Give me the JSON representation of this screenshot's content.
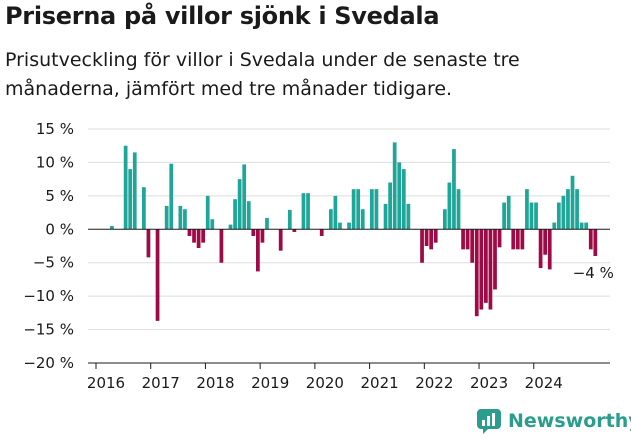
{
  "title": "Priserna på villor sjönk i Svedala",
  "subtitle": "Prisutveckling för villor i Svedala under de senaste tre månaderna, jämfört med tre månader tidigare.",
  "brand": "Newsworthy",
  "colors": {
    "positive": "#1fa698",
    "negative": "#9e0a45",
    "grid": "#dddddd",
    "text": "#1a1a1a",
    "brand": "#2a9d8f"
  },
  "chart_data": {
    "type": "bar",
    "ylim": [
      -20,
      15
    ],
    "yticks": [
      15,
      10,
      5,
      0,
      -5,
      -10,
      -15,
      -20
    ],
    "ytick_labels": [
      "15 %",
      "10 %",
      "5 %",
      "0 %",
      "−5 %",
      "−10 %",
      "−15 %",
      "−20 %"
    ],
    "xtick_labels": [
      "2016",
      "2017",
      "2018",
      "2019",
      "2020",
      "2021",
      "2022",
      "2023",
      "2024"
    ],
    "x_start": "2016-01",
    "annotation": "−4 %",
    "values": [
      0,
      0,
      0,
      0.5,
      0,
      0,
      12.5,
      9,
      11.5,
      0,
      6.3,
      -4.2,
      0,
      -13.7,
      0,
      3.5,
      9.8,
      0,
      3.5,
      3,
      -1,
      -2,
      -2.8,
      -2,
      5,
      1.5,
      0,
      -5,
      0,
      0.7,
      4.5,
      7.5,
      9.7,
      4.2,
      -1,
      -6.3,
      -2,
      1.7,
      0,
      0,
      -3.2,
      0,
      2.9,
      -0.4,
      0,
      5.4,
      5.4,
      0,
      0,
      -1,
      0,
      3,
      5,
      1,
      0,
      1,
      6,
      6,
      3,
      0,
      6,
      6,
      0,
      3.8,
      7,
      13,
      10,
      9,
      3.8,
      0,
      0,
      -5,
      -2.5,
      -3,
      -2,
      0,
      3,
      7,
      12,
      6,
      -3,
      -3,
      -5,
      -13,
      -12,
      -11,
      -12,
      -9,
      -2.7,
      4,
      5,
      -3,
      -3,
      -3,
      6,
      4,
      4,
      -5.8,
      -3.8,
      -6,
      1,
      4,
      5,
      6,
      8,
      6,
      1,
      1,
      -3,
      -4
    ]
  }
}
